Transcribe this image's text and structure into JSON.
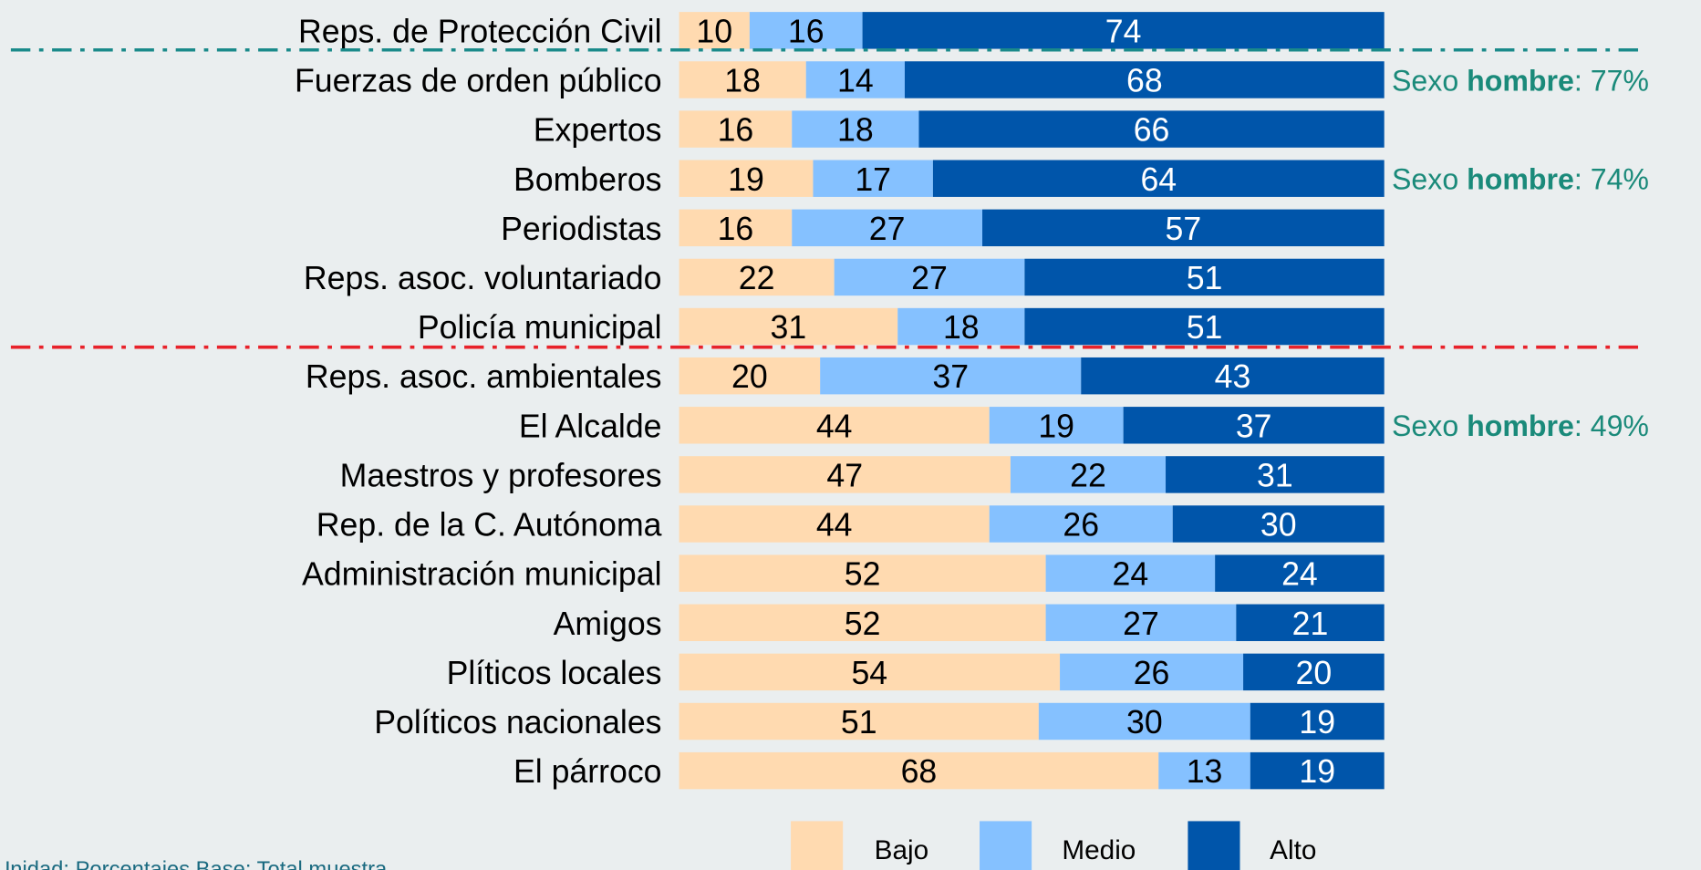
{
  "chart_data": {
    "type": "stacked_bar_horizontal",
    "categories": [
      "Reps. de Protección Civil",
      "Fuerzas de orden público",
      "Expertos",
      "Bomberos",
      "Periodistas",
      "Reps. asoc. voluntariado",
      "Policía municipal",
      "Reps. asoc. ambientales",
      "El Alcalde",
      "Maestros y profesores",
      "Rep. de la C. Autónoma",
      "Administración municipal",
      "Amigos",
      "Plíticos locales",
      "Políticos nacionales",
      "El párroco"
    ],
    "series": [
      {
        "name": "Bajo",
        "color": "#ffdab0",
        "label_color": "#000000",
        "values": [
          10,
          18,
          16,
          19,
          16,
          22,
          31,
          20,
          44,
          47,
          44,
          52,
          52,
          54,
          51,
          68
        ]
      },
      {
        "name": "Medio",
        "color": "#85c1ff",
        "label_color": "#000000",
        "values": [
          16,
          14,
          18,
          17,
          27,
          27,
          18,
          37,
          19,
          22,
          26,
          24,
          27,
          26,
          30,
          13
        ]
      },
      {
        "name": "Alto",
        "color": "#0055aa",
        "label_color": "#ffffff",
        "values": [
          74,
          68,
          66,
          64,
          57,
          51,
          51,
          43,
          37,
          31,
          30,
          24,
          21,
          20,
          19,
          19
        ]
      }
    ],
    "xlim": [
      0,
      100
    ],
    "legend": "bottom",
    "annotations": [
      {
        "prefix": "Sexo ",
        "bold": "hombre",
        "suffix": ": 77%"
      },
      {
        "prefix": "Sexo ",
        "bold": "hombre",
        "suffix": ": 74%"
      },
      {
        "prefix": "Sexo ",
        "bold": "hombre",
        "suffix": ": 49%"
      }
    ],
    "footnote": "Unidad: Porcentajes Base: Total muestra"
  }
}
